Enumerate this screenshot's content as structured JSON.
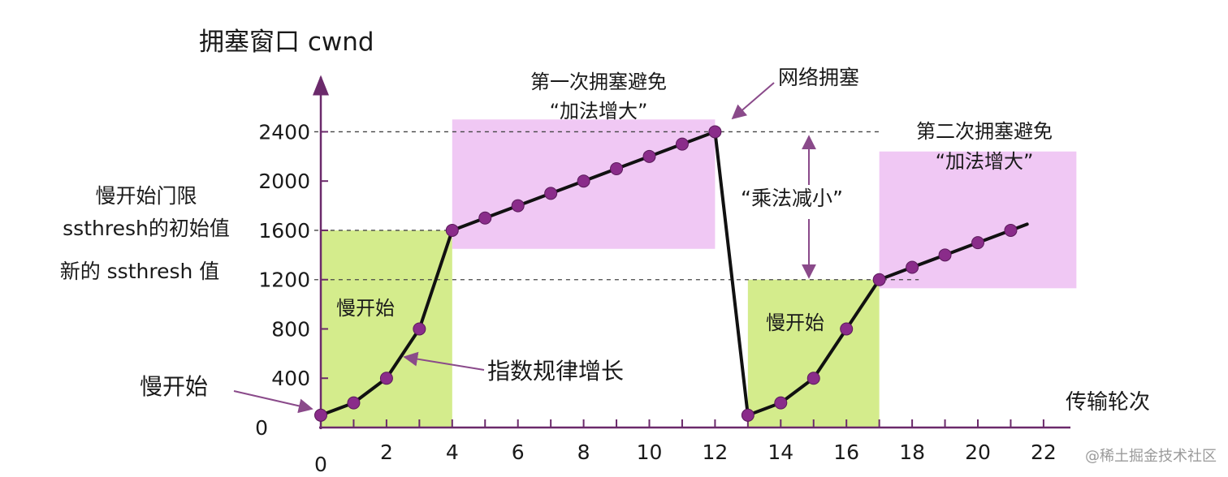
{
  "chart_data": {
    "type": "line",
    "ylabel": "拥塞窗口 cwnd",
    "xlabel": "传输轮次",
    "x_ticks": [
      0,
      2,
      4,
      6,
      8,
      10,
      12,
      14,
      16,
      18,
      20,
      22
    ],
    "y_ticks": [
      0,
      400,
      800,
      1200,
      1600,
      2000,
      2400
    ],
    "xlim": [
      0,
      22
    ],
    "ylim": [
      0,
      2400
    ],
    "series": [
      {
        "x": [
          0,
          1,
          2,
          3,
          4,
          5,
          6,
          7,
          8,
          9,
          10,
          11,
          12,
          13,
          14,
          15,
          16,
          17,
          18,
          19,
          20,
          21
        ],
        "values": [
          100,
          200,
          400,
          800,
          1600,
          1700,
          1800,
          1900,
          2000,
          2100,
          2200,
          2300,
          2400,
          100,
          200,
          400,
          800,
          1200,
          1300,
          1400,
          1500,
          1600
        ]
      }
    ],
    "reference_lines": [
      {
        "y": 2400
      },
      {
        "y": 1600
      },
      {
        "y": 1200
      }
    ],
    "regions": [
      {
        "label": "慢开始",
        "x_start": 0,
        "x_end": 4,
        "y_start": 0,
        "y_end": 1600,
        "color": "#d4ec8c"
      },
      {
        "label": "第一次拥塞避免",
        "label2": "“加法增大”",
        "x_start": 4,
        "x_end": 12,
        "y_start": 1450,
        "y_end": 2500,
        "color": "#f0c8f4"
      },
      {
        "label": "慢开始",
        "x_start": 13,
        "x_end": 17,
        "y_start": 0,
        "y_end": 1200,
        "color": "#d4ec8c"
      },
      {
        "label": "第二次拥塞避免",
        "label2": "“加法增大”",
        "x_start": 17,
        "x_end": 23,
        "y_start": 1130,
        "y_end": 2240,
        "color": "#f0c8f4"
      }
    ],
    "annotations": {
      "ssthresh_initial_line1": "慢开始门限",
      "ssthresh_initial_line2": "ssthresh的初始值",
      "ssthresh_new": "新的 ssthresh 值",
      "slow_start_arrow": "慢开始",
      "exponential_growth": "指数规律增长",
      "congestion": "网络拥塞",
      "multiplicative_decrease": "“乘法减小”"
    },
    "colors": {
      "line": "#111111",
      "marker": "#8a2c8a",
      "axis": "#6b2a6b",
      "arrow": "#8a4a8a",
      "dashed": "#444444"
    }
  },
  "watermark": "@稀土掘金技术社区"
}
